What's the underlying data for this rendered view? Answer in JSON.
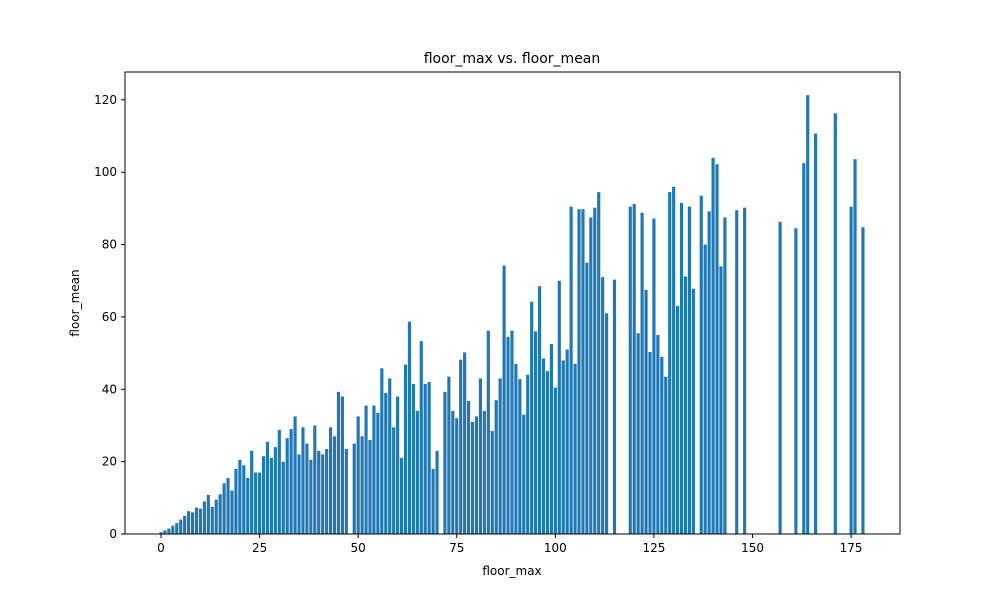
{
  "chart_data": {
    "type": "bar",
    "title": "floor_max vs. floor_mean",
    "xlabel": "floor_max",
    "ylabel": "floor_mean",
    "color": "#1f77b4",
    "bar_width": 0.8,
    "x": [
      0,
      1,
      2,
      3,
      4,
      5,
      6,
      7,
      8,
      9,
      10,
      11,
      12,
      13,
      14,
      15,
      16,
      17,
      18,
      19,
      20,
      21,
      22,
      23,
      24,
      25,
      26,
      27,
      28,
      29,
      30,
      31,
      32,
      33,
      34,
      35,
      36,
      37,
      38,
      39,
      40,
      41,
      42,
      43,
      44,
      45,
      46,
      47,
      49,
      50,
      51,
      52,
      53,
      54,
      55,
      56,
      57,
      58,
      59,
      60,
      61,
      62,
      63,
      64,
      65,
      66,
      67,
      68,
      69,
      70,
      72,
      73,
      74,
      75,
      76,
      77,
      78,
      79,
      80,
      81,
      82,
      83,
      84,
      85,
      86,
      87,
      88,
      89,
      90,
      91,
      92,
      93,
      94,
      95,
      96,
      97,
      98,
      99,
      100,
      101,
      102,
      103,
      104,
      105,
      106,
      107,
      108,
      109,
      110,
      111,
      112,
      113,
      115,
      119,
      120,
      121,
      122,
      123,
      124,
      125,
      126,
      127,
      128,
      129,
      130,
      131,
      132,
      133,
      134,
      135,
      137,
      138,
      139,
      140,
      141,
      142,
      143,
      146,
      148,
      157,
      161,
      163,
      164,
      166,
      171,
      175,
      176,
      178
    ],
    "values": [
      0.5,
      1,
      1.5,
      2.3,
      3,
      4,
      5,
      6.3,
      6,
      7.3,
      7,
      9,
      10.8,
      7.5,
      9.5,
      11,
      14,
      15.5,
      12,
      18,
      20.5,
      19,
      15.5,
      23,
      17,
      17,
      21.5,
      25.5,
      21,
      24,
      28.8,
      20,
      26.5,
      29,
      32.5,
      22,
      29.5,
      25,
      20.5,
      30,
      23,
      22,
      23.5,
      29.5,
      27,
      39.3,
      38,
      23.5,
      25,
      32.5,
      27,
      35.5,
      26,
      35.5,
      33.5,
      45.8,
      39,
      43,
      29.5,
      38,
      21,
      46.8,
      58.7,
      41.5,
      34,
      53.3,
      41.5,
      42,
      18,
      23,
      39.3,
      43.5,
      34,
      32,
      48.2,
      50.2,
      36.8,
      31,
      32.5,
      43,
      34,
      56.2,
      28.5,
      37,
      43,
      74.2,
      54.5,
      56.2,
      47,
      42.8,
      33,
      44,
      64.2,
      56,
      68.5,
      48.5,
      45,
      52.5,
      40.5,
      70,
      48,
      51,
      90.5,
      47,
      89.8,
      89.8,
      75,
      87.5,
      90.2,
      94.5,
      71,
      61,
      70.3,
      90.5,
      91.2,
      55.5,
      88.8,
      67.5,
      50.3,
      87.2,
      55,
      49,
      43.5,
      94.5,
      96,
      63,
      91.5,
      71.2,
      90.5,
      67.8,
      93.5,
      80,
      89.2,
      104,
      102.2,
      74,
      87.5,
      89.5,
      90.2,
      86.3,
      84.5,
      102.5,
      121.3,
      110.7,
      116.3,
      90.5,
      103.6,
      84.8
    ],
    "xlim": [
      -9.13,
      187.4
    ],
    "ylim": [
      0,
      127.7
    ],
    "xticks": [
      0,
      25,
      50,
      75,
      100,
      125,
      150,
      175
    ],
    "yticks": [
      0,
      20,
      40,
      60,
      80,
      100,
      120
    ]
  }
}
